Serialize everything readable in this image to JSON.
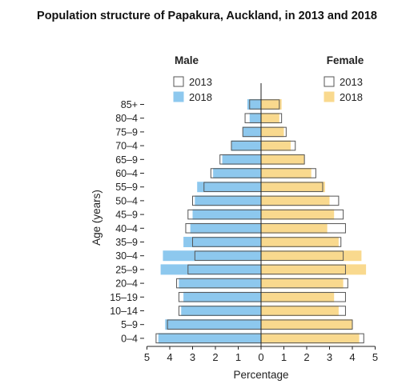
{
  "chart_data": {
    "type": "bar",
    "title": "Population structure of Papakura, Auckland, in 2013 and 2018",
    "xlabel": "Percentage",
    "ylabel": "Age (years)",
    "xlim": [
      -5,
      5
    ],
    "xticks": [
      "5",
      "4",
      "3",
      "2",
      "1",
      "0",
      "1",
      "2",
      "3",
      "4",
      "5"
    ],
    "panels": {
      "male": "Male",
      "female": "Female"
    },
    "legend": {
      "male": [
        {
          "label": "2013",
          "color": "#ffffff",
          "stroke": "#555555"
        },
        {
          "label": "2018",
          "color": "#8dc8ee",
          "stroke": "#8dc8ee"
        }
      ],
      "female": [
        {
          "label": "2013",
          "color": "#ffffff",
          "stroke": "#555555"
        },
        {
          "label": "2018",
          "color": "#f9d98e",
          "stroke": "#f9d98e"
        }
      ]
    },
    "categories": [
      "85+",
      "80–4",
      "75–9",
      "70–4",
      "65–9",
      "60–4",
      "55–9",
      "50–4",
      "45–9",
      "40–4",
      "35–9",
      "30–4",
      "25–9",
      "20–4",
      "15–19",
      "10–14",
      "5–9",
      "0–4"
    ],
    "series": [
      {
        "name": "2013",
        "sex": "Male",
        "values": [
          0.5,
          0.7,
          0.8,
          1.3,
          1.8,
          2.2,
          2.5,
          3.0,
          3.2,
          3.3,
          3.0,
          2.9,
          3.2,
          3.7,
          3.6,
          3.6,
          4.1,
          4.6
        ]
      },
      {
        "name": "2018",
        "sex": "Male",
        "values": [
          0.6,
          0.5,
          0.8,
          1.3,
          1.7,
          2.1,
          2.8,
          2.9,
          3.0,
          3.1,
          3.4,
          4.3,
          4.4,
          3.6,
          3.4,
          3.5,
          4.2,
          4.5
        ]
      },
      {
        "name": "2013",
        "sex": "Female",
        "values": [
          0.8,
          0.9,
          1.1,
          1.5,
          1.9,
          2.4,
          2.7,
          3.4,
          3.6,
          3.7,
          3.5,
          3.6,
          3.7,
          3.8,
          3.7,
          3.7,
          4.0,
          4.5
        ]
      },
      {
        "name": "2018",
        "sex": "Female",
        "values": [
          0.9,
          0.8,
          1.0,
          1.3,
          1.9,
          2.2,
          2.8,
          3.0,
          3.2,
          2.9,
          3.4,
          4.4,
          4.6,
          3.6,
          3.2,
          3.4,
          4.0,
          4.3
        ]
      }
    ]
  }
}
